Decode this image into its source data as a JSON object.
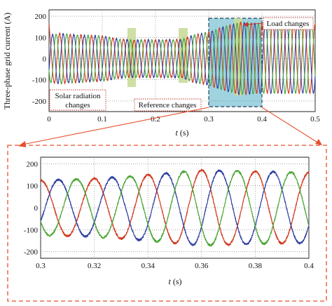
{
  "chart_data": [
    {
      "type": "line",
      "title": "",
      "xlabel_var": "t",
      "xlabel_unit": " (s)",
      "ylabel": "Three-phase grid current (A)",
      "xlim": [
        0,
        0.5
      ],
      "ylim": [
        -250,
        230
      ],
      "xticks": [
        "0",
        "0.1",
        "0.2",
        "0.3",
        "0.4",
        "0.5"
      ],
      "xtick_values": [
        0,
        0.1,
        0.2,
        0.3,
        0.4,
        0.5
      ],
      "yticks": [
        "-200",
        "-100",
        "0",
        "100",
        "200"
      ],
      "ytick_values": [
        -200,
        -100,
        0,
        100,
        200
      ],
      "grid": "dotted",
      "frequency_hz": 50,
      "series": [
        {
          "color": "#d03a1f",
          "phase_deg": 90
        },
        {
          "color": "#2f3fa0",
          "phase_deg": -30
        },
        {
          "color": "#4aa535",
          "phase_deg": 210
        }
      ],
      "amplitude_envelope": {
        "t": [
          0.0,
          0.02,
          0.05,
          0.1,
          0.13,
          0.15,
          0.2,
          0.25,
          0.27,
          0.3,
          0.33,
          0.36,
          0.4,
          0.5
        ],
        "amp": [
          110,
          118,
          112,
          106,
          92,
          88,
          88,
          90,
          110,
          125,
          150,
          170,
          162,
          162
        ]
      },
      "annotations": [
        {
          "text": "Solar radiation",
          "text2": "changes",
          "kind": "dotted-box"
        },
        {
          "text": "Reference changes",
          "kind": "dotted-box"
        },
        {
          "text": "Load changes",
          "kind": "dotted-box"
        }
      ],
      "highlight_colors": {
        "green_box": "#c9dc9a",
        "zoom_region": "#8ecbdb"
      },
      "zoom_region": [
        0.3,
        0.4
      ]
    },
    {
      "type": "line",
      "title": "",
      "xlabel_var": "t",
      "xlabel_unit": " (s)",
      "ylabel": "",
      "xlim": [
        0.3,
        0.4
      ],
      "ylim": [
        -230,
        230
      ],
      "xticks": [
        "0.3",
        "0.32",
        "0.34",
        "0.36",
        "0.38",
        "0.4"
      ],
      "xtick_values": [
        0.3,
        0.32,
        0.34,
        0.36,
        0.38,
        0.4
      ],
      "yticks": [
        "-200",
        "-100",
        "0",
        "100",
        "200"
      ],
      "ytick_values": [
        -200,
        -100,
        0,
        100,
        200
      ],
      "grid": "dotted",
      "frequency_hz": 50,
      "series": [
        {
          "color": "#d03a1f",
          "phase_deg": 90
        },
        {
          "color": "#2f3fa0",
          "phase_deg": -30
        },
        {
          "color": "#4aa535",
          "phase_deg": 210
        }
      ],
      "amplitude_envelope": {
        "t": [
          0.3,
          0.32,
          0.34,
          0.36,
          0.37,
          0.4
        ],
        "amp": [
          125,
          132,
          150,
          172,
          168,
          160
        ]
      }
    }
  ],
  "colors": {
    "frame_dash": "#e4502e",
    "arrow": "#e4502e"
  }
}
